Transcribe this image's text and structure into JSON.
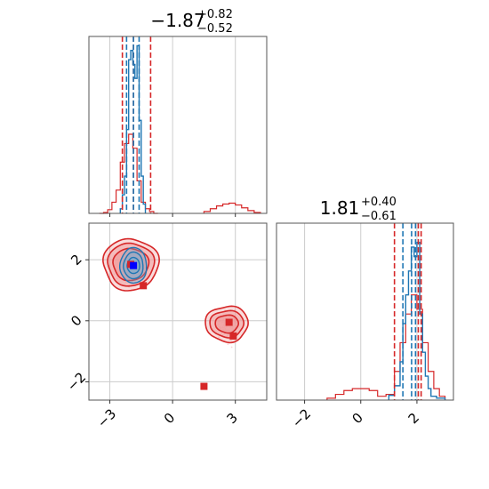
{
  "chart_data": {
    "type": "corner",
    "colors": {
      "red": "#d62728",
      "blue": "#1f77b4",
      "red_fill": "#ef9a9a",
      "blue_fill": "#6baed6",
      "grid": "#cccccc"
    },
    "panels": [
      {
        "name": "hist-param-1",
        "type": "histogram",
        "title": {
          "median": "−1.87",
          "plus": "+0.82",
          "minus": "−0.52"
        },
        "xlim": [
          -4,
          4.5
        ],
        "grid_x": [
          -3,
          0,
          3
        ],
        "red_dashed_lines": [
          -2.4,
          -1.87,
          -1.05
        ],
        "blue_dashed_lines": [
          -2.2,
          -1.87,
          -1.6
        ],
        "red_series": {
          "bin_edges": [
            -3.5,
            -3.3,
            -3.1,
            -2.9,
            -2.7,
            -2.5,
            -2.3,
            -2.1,
            -1.9,
            -1.7,
            -1.5,
            -1.3,
            -1.1,
            -0.9,
            -0.7
          ],
          "values": [
            0,
            1,
            4,
            12,
            25,
            55,
            75,
            85,
            70,
            35,
            12,
            5,
            2,
            0
          ]
        },
        "red_secondary": {
          "bin_edges": [
            1.5,
            1.8,
            2.1,
            2.4,
            2.7,
            3.0,
            3.3,
            3.6,
            3.9,
            4.2
          ],
          "values": [
            2,
            5,
            8,
            10,
            11,
            9,
            6,
            3,
            1
          ]
        },
        "blue_series": {
          "bin_edges": [
            -2.5,
            -2.4,
            -2.3,
            -2.2,
            -2.1,
            -2.0,
            -1.9,
            -1.8,
            -1.7,
            -1.6,
            -1.5,
            -1.4,
            -1.3
          ],
          "values": [
            5,
            20,
            40,
            90,
            165,
            175,
            160,
            145,
            180,
            100,
            40,
            10
          ]
        },
        "ylim": [
          0,
          190
        ]
      },
      {
        "name": "scatter-2d",
        "type": "contour",
        "xlim": [
          -4,
          4.5
        ],
        "ylim": [
          -2.6,
          3.2
        ],
        "x_ticks": [
          -3,
          0,
          3
        ],
        "x_tick_labels": [
          "−3",
          "0",
          "3"
        ],
        "y_ticks": [
          -2,
          0,
          2
        ],
        "y_tick_labels": [
          "−2",
          "0",
          "2"
        ],
        "red_markers": [
          {
            "x": -2.0,
            "y": 1.85
          },
          {
            "x": -1.4,
            "y": 1.15
          },
          {
            "x": 2.7,
            "y": -0.05
          },
          {
            "x": 2.9,
            "y": -0.5
          },
          {
            "x": 1.5,
            "y": -2.15
          }
        ],
        "blue_marker": {
          "x": -1.87,
          "y": 1.81
        }
      },
      {
        "name": "hist-param-2",
        "type": "histogram",
        "title": {
          "median": "1.81",
          "plus": "+0.40",
          "minus": "−0.61"
        },
        "xlim": [
          -3,
          3.3
        ],
        "x_ticks": [
          -2,
          0,
          2
        ],
        "x_tick_labels": [
          "−2",
          "0",
          "2"
        ],
        "red_dashed_lines": [
          1.2,
          2.05,
          2.15
        ],
        "blue_dashed_lines": [
          1.5,
          1.81,
          1.95
        ],
        "red_series": {
          "bin_edges": [
            -1.2,
            -0.9,
            -0.6,
            -0.3,
            0.0,
            0.3,
            0.6,
            0.9,
            1.2,
            1.4,
            1.6,
            1.8,
            2.0,
            2.2,
            2.4,
            2.6,
            2.8,
            3.0
          ],
          "values": [
            2,
            6,
            10,
            12,
            12,
            10,
            4,
            6,
            30,
            60,
            90,
            110,
            95,
            60,
            30,
            12,
            4
          ]
        },
        "blue_series": {
          "bin_edges": [
            1.0,
            1.2,
            1.4,
            1.5,
            1.6,
            1.7,
            1.8,
            1.9,
            2.0,
            2.1,
            2.2,
            2.3,
            2.4,
            2.5,
            2.7,
            3.0
          ],
          "values": [
            5,
            15,
            40,
            80,
            110,
            135,
            160,
            150,
            165,
            90,
            50,
            25,
            12,
            4,
            2
          ]
        },
        "ylim": [
          0,
          185
        ]
      }
    ]
  }
}
